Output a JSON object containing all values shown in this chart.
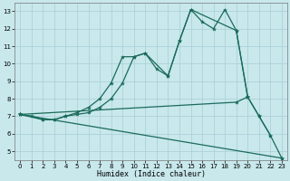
{
  "xlabel": "Humidex (Indice chaleur)",
  "xlim": [
    -0.5,
    23.5
  ],
  "ylim": [
    4.5,
    13.5
  ],
  "yticks": [
    5,
    6,
    7,
    8,
    9,
    10,
    11,
    12,
    13
  ],
  "xticks": [
    0,
    1,
    2,
    3,
    4,
    5,
    6,
    7,
    8,
    9,
    10,
    11,
    12,
    13,
    14,
    15,
    16,
    17,
    18,
    19,
    20,
    21,
    22,
    23
  ],
  "bg_color": "#c8e8ec",
  "grid_color": "#a8cdd4",
  "line_color": "#1a6b5a",
  "curve1_x": [
    0,
    1,
    2,
    3,
    4,
    5,
    6,
    7,
    8,
    9,
    10,
    11,
    12,
    13,
    14,
    15,
    16,
    17,
    18,
    19,
    20,
    21,
    22,
    23
  ],
  "curve1_y": [
    7.1,
    7.0,
    6.8,
    6.8,
    7.0,
    7.1,
    7.2,
    7.5,
    8.0,
    8.9,
    10.4,
    10.6,
    9.7,
    9.3,
    11.3,
    13.1,
    12.4,
    12.0,
    13.1,
    11.9,
    8.1,
    7.0,
    5.9,
    4.6
  ],
  "curve2_x": [
    0,
    2,
    3,
    4,
    5,
    6,
    7,
    8,
    9,
    10,
    11,
    13,
    14,
    15,
    19,
    20
  ],
  "curve2_y": [
    7.1,
    6.8,
    6.8,
    7.0,
    7.2,
    7.5,
    8.0,
    8.9,
    10.4,
    10.4,
    10.6,
    9.3,
    11.3,
    13.1,
    11.9,
    8.1
  ],
  "line3_x": [
    0,
    19,
    20,
    21,
    22
  ],
  "line3_y": [
    7.1,
    7.8,
    8.1,
    7.0,
    5.9
  ],
  "line4_x": [
    0,
    23
  ],
  "line4_y": [
    7.1,
    4.6
  ]
}
